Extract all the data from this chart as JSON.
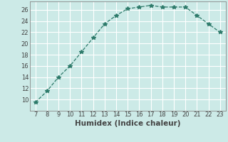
{
  "x": [
    7,
    8,
    9,
    10,
    11,
    12,
    13,
    14,
    15,
    16,
    17,
    18,
    19,
    20,
    21,
    22,
    23
  ],
  "y": [
    9.5,
    11.5,
    14.0,
    16.0,
    18.5,
    21.0,
    23.5,
    25.0,
    26.2,
    26.5,
    26.8,
    26.5,
    26.5,
    26.5,
    25.0,
    23.5,
    22.0
  ],
  "line_color": "#2d7a6a",
  "marker": "*",
  "marker_size": 4,
  "xlabel": "Humidex (Indice chaleur)",
  "xlim_min": 6.5,
  "xlim_max": 23.5,
  "ylim_min": 8,
  "ylim_max": 27.5,
  "yticks": [
    10,
    12,
    14,
    16,
    18,
    20,
    22,
    24,
    26
  ],
  "xticks": [
    7,
    8,
    9,
    10,
    11,
    12,
    13,
    14,
    15,
    16,
    17,
    18,
    19,
    20,
    21,
    22,
    23
  ],
  "bg_color": "#cceae7",
  "grid_color": "#ffffff",
  "tick_color": "#444444",
  "xlabel_fontsize": 7.5,
  "tick_fontsize": 6
}
